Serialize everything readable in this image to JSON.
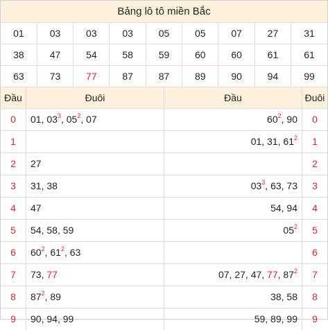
{
  "title": "Bảng lô tô miền Bắc",
  "numbers": [
    [
      "01",
      "03",
      "03",
      "03",
      "05",
      "05",
      "07",
      "27",
      "31"
    ],
    [
      "38",
      "47",
      "54",
      "58",
      "59",
      "60",
      "60",
      "61",
      "61"
    ],
    [
      "63",
      "73",
      "77",
      "87",
      "87",
      "89",
      "90",
      "94",
      "99"
    ]
  ],
  "highlight_number": "77",
  "left": {
    "head_dau": "Đầu",
    "head_duoi": "Đuôi",
    "rows": [
      {
        "dau": "0",
        "items": [
          {
            "v": "01"
          },
          {
            "v": "03",
            "sup": "3"
          },
          {
            "v": "05",
            "sup": "2"
          },
          {
            "v": "07"
          }
        ]
      },
      {
        "dau": "1",
        "items": []
      },
      {
        "dau": "2",
        "items": [
          {
            "v": "27"
          }
        ]
      },
      {
        "dau": "3",
        "items": [
          {
            "v": "31"
          },
          {
            "v": "38"
          }
        ]
      },
      {
        "dau": "4",
        "items": [
          {
            "v": "47"
          }
        ]
      },
      {
        "dau": "5",
        "items": [
          {
            "v": "54"
          },
          {
            "v": "58"
          },
          {
            "v": "59"
          }
        ]
      },
      {
        "dau": "6",
        "items": [
          {
            "v": "60",
            "sup": "2"
          },
          {
            "v": "61",
            "sup": "2"
          },
          {
            "v": "63"
          }
        ]
      },
      {
        "dau": "7",
        "items": [
          {
            "v": "73"
          },
          {
            "v": "77",
            "red": true
          }
        ]
      },
      {
        "dau": "8",
        "items": [
          {
            "v": "87",
            "sup": "2"
          },
          {
            "v": "89"
          }
        ]
      },
      {
        "dau": "9",
        "items": [
          {
            "v": "90"
          },
          {
            "v": "94"
          },
          {
            "v": "99"
          }
        ]
      }
    ]
  },
  "right": {
    "head_dau": "Đầu",
    "head_duoi": "Đuôi",
    "rows": [
      {
        "dau": "0",
        "items": [
          {
            "v": "60",
            "sup": "2"
          },
          {
            "v": "90"
          }
        ]
      },
      {
        "dau": "1",
        "items": [
          {
            "v": "01"
          },
          {
            "v": "31"
          },
          {
            "v": "61",
            "sup": "2"
          }
        ]
      },
      {
        "dau": "2",
        "items": []
      },
      {
        "dau": "3",
        "items": [
          {
            "v": "03",
            "sup": "3"
          },
          {
            "v": "63"
          },
          {
            "v": "73"
          }
        ]
      },
      {
        "dau": "4",
        "items": [
          {
            "v": "54"
          },
          {
            "v": "94"
          }
        ]
      },
      {
        "dau": "5",
        "items": [
          {
            "v": "05",
            "sup": "2"
          }
        ]
      },
      {
        "dau": "6",
        "items": []
      },
      {
        "dau": "7",
        "items": [
          {
            "v": "07"
          },
          {
            "v": "27"
          },
          {
            "v": "47"
          },
          {
            "v": "77",
            "red": true
          },
          {
            "v": "87",
            "sup": "2"
          }
        ]
      },
      {
        "dau": "8",
        "items": [
          {
            "v": "38"
          },
          {
            "v": "58"
          }
        ]
      },
      {
        "dau": "9",
        "items": [
          {
            "v": "59"
          },
          {
            "v": "89"
          },
          {
            "v": "99"
          }
        ]
      }
    ]
  },
  "colors": {
    "accent_red": "#e0212f",
    "header_bg": "#fdf0dc"
  }
}
